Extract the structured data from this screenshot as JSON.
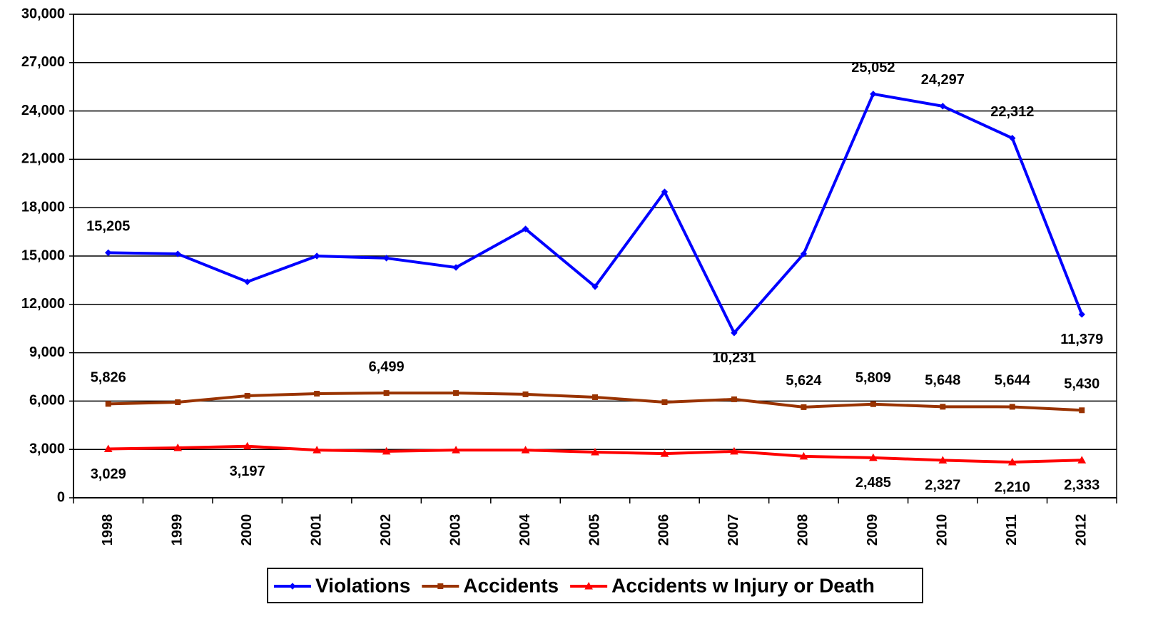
{
  "chart_data": {
    "type": "line",
    "categories": [
      "1998",
      "1999",
      "2000",
      "2001",
      "2002",
      "2003",
      "2004",
      "2005",
      "2006",
      "2007",
      "2008",
      "2009",
      "2010",
      "2011",
      "2012"
    ],
    "series": [
      {
        "name": "Violations",
        "color": "#0000ff",
        "marker": "diamond",
        "values": [
          15205,
          15130,
          13400,
          15000,
          14870,
          14290,
          16680,
          13100,
          18980,
          10231,
          15130,
          25052,
          24297,
          22312,
          11379
        ],
        "value_labels": [
          "15,205",
          null,
          null,
          null,
          null,
          null,
          null,
          null,
          null,
          "10,231",
          null,
          "25,052",
          "24,297",
          "22,312",
          "11,379"
        ]
      },
      {
        "name": "Accidents",
        "color": "#993300",
        "marker": "square",
        "values": [
          5826,
          5930,
          6330,
          6460,
          6499,
          6500,
          6420,
          6240,
          5930,
          6110,
          5624,
          5809,
          5648,
          5644,
          5430
        ],
        "value_labels": [
          "5,826",
          null,
          null,
          null,
          "6,499",
          null,
          null,
          null,
          null,
          null,
          "5,624",
          "5,809",
          "5,648",
          "5,644",
          "5,430"
        ]
      },
      {
        "name": "Accidents w Injury or Death",
        "color": "#ff0000",
        "marker": "triangle",
        "values": [
          3029,
          3100,
          3197,
          2960,
          2880,
          2960,
          2960,
          2830,
          2740,
          2880,
          2570,
          2485,
          2327,
          2210,
          2333
        ],
        "value_labels": [
          "3,029",
          null,
          "3,197",
          null,
          null,
          null,
          null,
          null,
          null,
          null,
          null,
          "2,485",
          "2,327",
          "2,210",
          "2,333"
        ]
      }
    ],
    "ylim": [
      0,
      30000
    ],
    "yticks": [
      0,
      {
        "value": 3000,
        "label": "3,000"
      },
      {
        "value": 6000,
        "label": "6,000"
      },
      {
        "value": 9000,
        "label": "9,000"
      },
      {
        "value": 12000,
        "label": "12,000"
      },
      {
        "value": 15000,
        "label": "15,000"
      },
      {
        "value": 18000,
        "label": "18,000"
      },
      {
        "value": 21000,
        "label": "21,000"
      },
      {
        "value": 24000,
        "label": "24,000"
      },
      {
        "value": 27000,
        "label": "27,000"
      },
      {
        "value": 30000,
        "label": "30,000"
      }
    ],
    "grid": true
  }
}
